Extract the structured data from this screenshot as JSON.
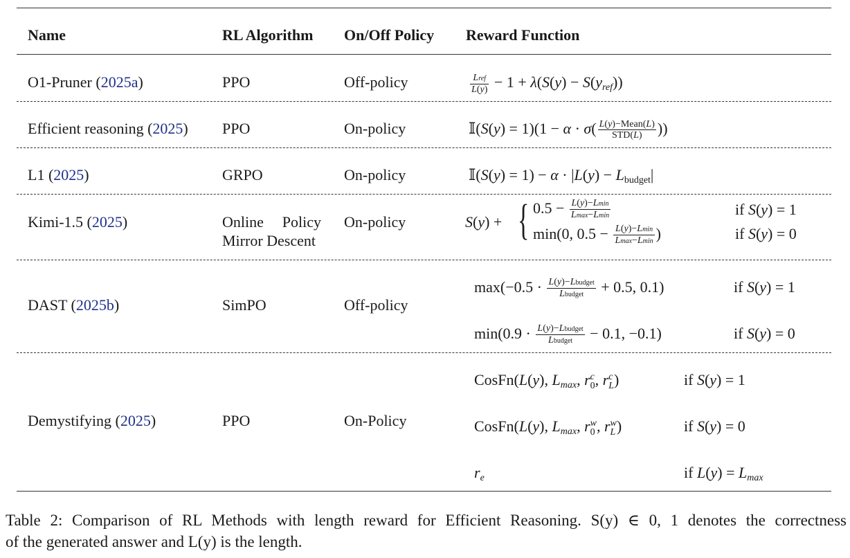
{
  "table": {
    "headers": {
      "name": "Name",
      "algorithm": "RL Algorithm",
      "policy": "On/Off Policy",
      "reward": "Reward Function"
    },
    "rows": [
      {
        "name": "O1-Pruner (",
        "cite": "2025a",
        "close": ")",
        "algorithm": "PPO",
        "policy": "Off-policy"
      },
      {
        "name": "Efficient reasoning (",
        "cite": "2025",
        "close": ")",
        "algorithm": "PPO",
        "policy": "On-policy"
      },
      {
        "name": "L1 (",
        "cite": "2025",
        "close": ")",
        "algorithm": "GRPO",
        "policy": "On-policy"
      },
      {
        "name": "Kimi-1.5 (",
        "cite": "2025",
        "close": ")",
        "algorithm_line1": "Online Policy",
        "algorithm_line2": "Mirror Descent",
        "policy": "On-policy"
      },
      {
        "name": "DAST (",
        "cite": "2025b",
        "close": ")",
        "algorithm": "SimPO",
        "policy": "Off-policy"
      },
      {
        "name": "Demystifying (",
        "cite": "2025",
        "close": ")",
        "algorithm": "PPO",
        "policy": "On-Policy"
      }
    ],
    "math_text": {
      "mean": "Mean",
      "std": "STD",
      "budget": "budget",
      "cosfn": "CosFn",
      "if": "if",
      "min": "min",
      "max": "max"
    }
  },
  "caption": {
    "line1": "Table 2: Comparison of RL Methods with length reward for Efficient Reasoning. S(y) ∈ 0, 1 denotes the correctness",
    "line2": "of the generated answer and L(y) is the length."
  }
}
